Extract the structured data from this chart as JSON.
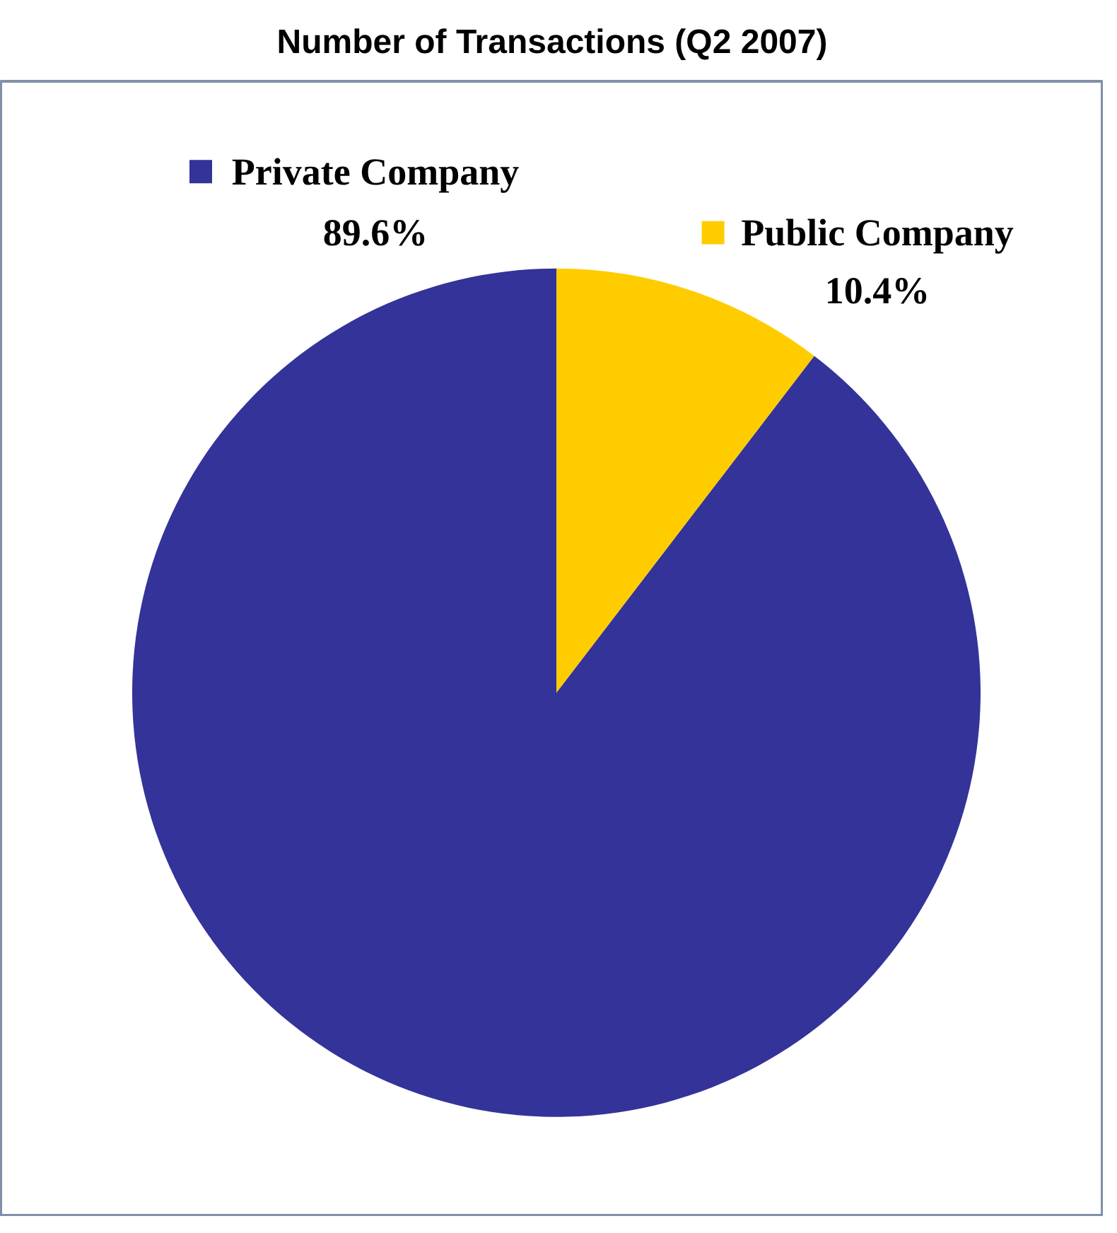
{
  "chart_data": {
    "type": "pie",
    "title": "Number of Transactions (Q2 2007)",
    "categories": [
      "Private Company",
      "Public Company"
    ],
    "values": [
      89.6,
      10.4
    ],
    "colors": [
      "#333399",
      "#ffcc00"
    ],
    "value_labels": [
      "89.6%",
      "10.4%"
    ],
    "legend": "top"
  }
}
